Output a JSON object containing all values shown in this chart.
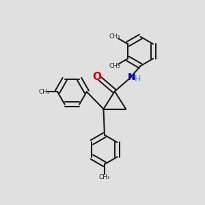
{
  "background_color": "#e0e0e0",
  "bond_color": "#1a1a1a",
  "O_color": "#dd0000",
  "N_color": "#0000cc",
  "H_color": "#4a9aaa",
  "line_width": 1.5,
  "fig_size": [
    3.0,
    3.0
  ],
  "dpi": 100,
  "xlim": [
    0,
    10
  ],
  "ylim": [
    0,
    10
  ]
}
